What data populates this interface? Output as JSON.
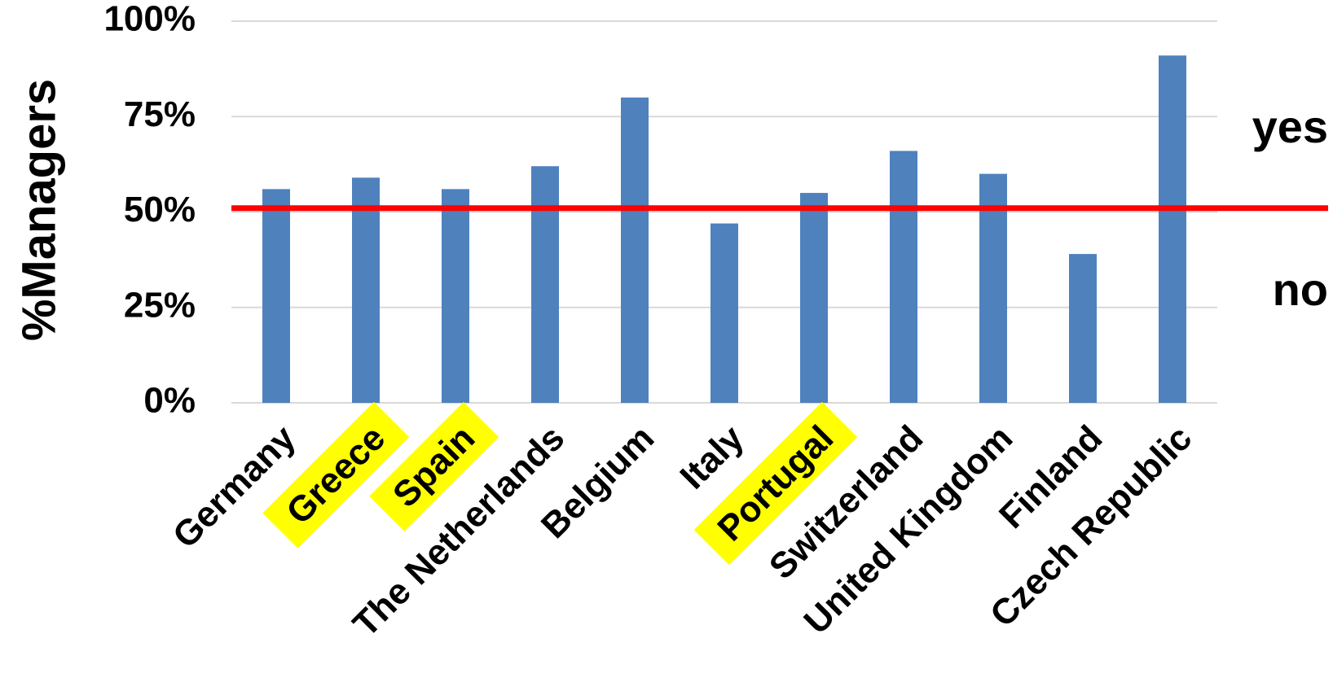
{
  "chart_data": {
    "type": "bar",
    "y_label": "%Managers",
    "categories": [
      "Germany",
      "Greece",
      "Spain",
      "The Netherlands",
      "Belgium",
      "Italy",
      "Portugal",
      "Switzerland",
      "United Kingdom",
      "Finland",
      "Czech Republic"
    ],
    "values": [
      56,
      59,
      56,
      62,
      80,
      47,
      55,
      66,
      60,
      39,
      91
    ],
    "color": "#4f81bd",
    "highlight": [
      1,
      2,
      6
    ],
    "highlight_color": "#ffff00",
    "ylim": [
      0,
      100
    ],
    "yticks": [
      {
        "value": 0,
        "label": "0%"
      },
      {
        "value": 25,
        "label": "25%"
      },
      {
        "value": 50,
        "label": "50%"
      },
      {
        "value": 75,
        "label": "75%"
      },
      {
        "value": 100,
        "label": "100%"
      }
    ],
    "grid": true,
    "reference_line": {
      "value": 51,
      "color": "#ff0000"
    },
    "annotations": [
      "yes",
      "no"
    ]
  }
}
